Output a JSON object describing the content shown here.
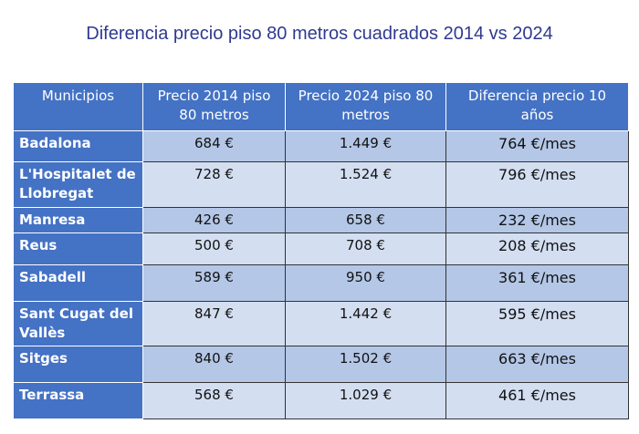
{
  "header": {
    "title": "Diferencia precio piso 80 metros cuadrados 2014 vs 2024"
  },
  "table": {
    "columns": [
      "Municipios",
      "Precio 2014 piso 80 metros",
      "Precio 2024 piso 80 metros",
      "Diferencia precio 10 años"
    ],
    "rows": [
      [
        "Badalona",
        "684 €",
        "1.449 €",
        "764 €/mes"
      ],
      [
        "L'Hospitalet de Llobregat",
        "728 €",
        "1.524 €",
        "796 €/mes"
      ],
      [
        "Manresa",
        "426 €",
        "658 €",
        "232 €/mes"
      ],
      [
        "Reus",
        "500 €",
        "708 €",
        "208 €/mes"
      ],
      [
        "Sabadell",
        "589 €",
        "950 €",
        "361 €/mes"
      ],
      [
        "Sant Cugat del Vallès",
        "847 €",
        "1.442 €",
        "595 €/mes"
      ],
      [
        "Sitges",
        "840 €",
        "1.502 €",
        "663 €/mes"
      ],
      [
        "Terrassa",
        "568 €",
        "1.029 €",
        "461 €/mes"
      ]
    ]
  }
}
